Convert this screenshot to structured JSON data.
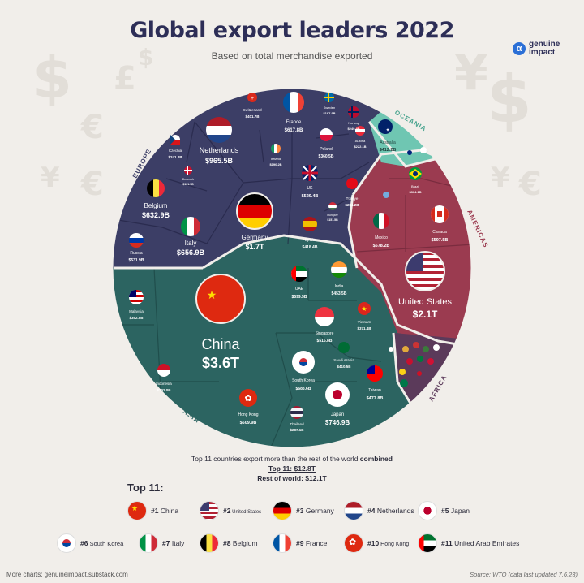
{
  "title": "Global export leaders 2022",
  "subtitle": "Based on total merchandise exported",
  "logo": {
    "line1": "genuine",
    "line2": "impact"
  },
  "summary": {
    "line1_a": "Top 11 countries export more than the rest of the world",
    "line1_b": "combined",
    "line2": "Top 11: $12.8T",
    "line3": "Rest of world: $12.1T"
  },
  "top_heading": "Top 11:",
  "legend": [
    {
      "rank": "#1",
      "name": "China"
    },
    {
      "rank": "#2",
      "name": "United States"
    },
    {
      "rank": "#3",
      "name": "Germany"
    },
    {
      "rank": "#4",
      "name": "Netherlands"
    },
    {
      "rank": "#5",
      "name": "Japan"
    },
    {
      "rank": "#6",
      "name": "South Korea"
    },
    {
      "rank": "#7",
      "name": "Italy"
    },
    {
      "rank": "#8",
      "name": "Belgium"
    },
    {
      "rank": "#9",
      "name": "France"
    },
    {
      "rank": "#10",
      "name": "Hong Kong"
    },
    {
      "rank": "#11",
      "name": "United Arab Emirates"
    }
  ],
  "footer": {
    "left": "More charts: genuineimpact.substack.com",
    "right": "Source: WTO (data last updated 7.6.23)"
  },
  "colors": {
    "europe": "#3c3e66",
    "asia": "#2c6461",
    "americas": "#9b3b50",
    "oceania": "#6fc6b2",
    "africa": "#5b3a5a",
    "title": "#2d2e57"
  },
  "chart_data": {
    "type": "voronoi-treemap",
    "unit": "USD",
    "regions": [
      {
        "name": "EUROPE",
        "countries": [
          {
            "name": "Germany",
            "label": "$1.7T",
            "value": 1700
          },
          {
            "name": "Netherlands",
            "label": "$965.5B",
            "value": 965.5
          },
          {
            "name": "Italy",
            "label": "$656.9B",
            "value": 656.9
          },
          {
            "name": "Belgium",
            "label": "$632.9B",
            "value": 632.9
          },
          {
            "name": "France",
            "label": "$617.8B",
            "value": 617.8
          },
          {
            "name": "Russia",
            "label": "$531.9B",
            "value": 531.9
          },
          {
            "name": "UK",
            "label": "$529.4B",
            "value": 529.4
          },
          {
            "name": "Spain",
            "label": "$418.4B",
            "value": 418.4
          },
          {
            "name": "Switzerland",
            "label": "$401.7B",
            "value": 401.7
          },
          {
            "name": "Poland",
            "label": "$360.5B",
            "value": 360.5
          },
          {
            "name": "Czechia",
            "label": "$241.2B",
            "value": 241.2
          },
          {
            "name": "Austria",
            "label": "$222.1B",
            "value": 222.1
          },
          {
            "name": "Türkiye",
            "label": "$254.2B",
            "value": 254.2
          },
          {
            "name": "Sweden",
            "label": "$197.9B",
            "value": 197.9
          },
          {
            "name": "Norway",
            "label": "$249.4B",
            "value": 249.4
          },
          {
            "name": "Ireland",
            "label": "$190.2B",
            "value": 190.2
          },
          {
            "name": "Hungary",
            "label": "$151.5B",
            "value": 151.5
          },
          {
            "name": "Denmark",
            "label": "$131.1B",
            "value": 131.1
          }
        ]
      },
      {
        "name": "ASIA",
        "countries": [
          {
            "name": "China",
            "label": "$3.6T",
            "value": 3600
          },
          {
            "name": "Japan",
            "label": "$746.9B",
            "value": 746.9
          },
          {
            "name": "South Korea",
            "label": "$683.6B",
            "value": 683.6
          },
          {
            "name": "Hong Kong",
            "label": "$609.9B",
            "value": 609.9
          },
          {
            "name": "UAE",
            "label": "$599.5B",
            "value": 599.5
          },
          {
            "name": "Singapore",
            "label": "$515.8B",
            "value": 515.8
          },
          {
            "name": "Taiwan",
            "label": "$477.8B",
            "value": 477.8
          },
          {
            "name": "India",
            "label": "$453.5B",
            "value": 453.5
          },
          {
            "name": "Saudi Arabia",
            "label": "$410.5B",
            "value": 410.5
          },
          {
            "name": "Vietnam",
            "label": "$371.4B",
            "value": 371.4
          },
          {
            "name": "Malaysia",
            "label": "$352.5B",
            "value": 352.5
          },
          {
            "name": "Indonesia",
            "label": "$292.0B",
            "value": 292.0
          },
          {
            "name": "Thailand",
            "label": "$287.1B",
            "value": 287.1
          }
        ]
      },
      {
        "name": "AMERICAS",
        "countries": [
          {
            "name": "United States",
            "label": "$2.1T",
            "value": 2100
          },
          {
            "name": "Mexico",
            "label": "$578.2B",
            "value": 578.2
          },
          {
            "name": "Canada",
            "label": "$597.5B",
            "value": 597.5
          },
          {
            "name": "Brazil",
            "label": "$334.1B",
            "value": 334.1
          }
        ]
      },
      {
        "name": "OCEANIA",
        "countries": [
          {
            "name": "Australia",
            "label": "$412.2B",
            "value": 412.2
          }
        ]
      },
      {
        "name": "AFRICA",
        "countries": []
      }
    ]
  }
}
